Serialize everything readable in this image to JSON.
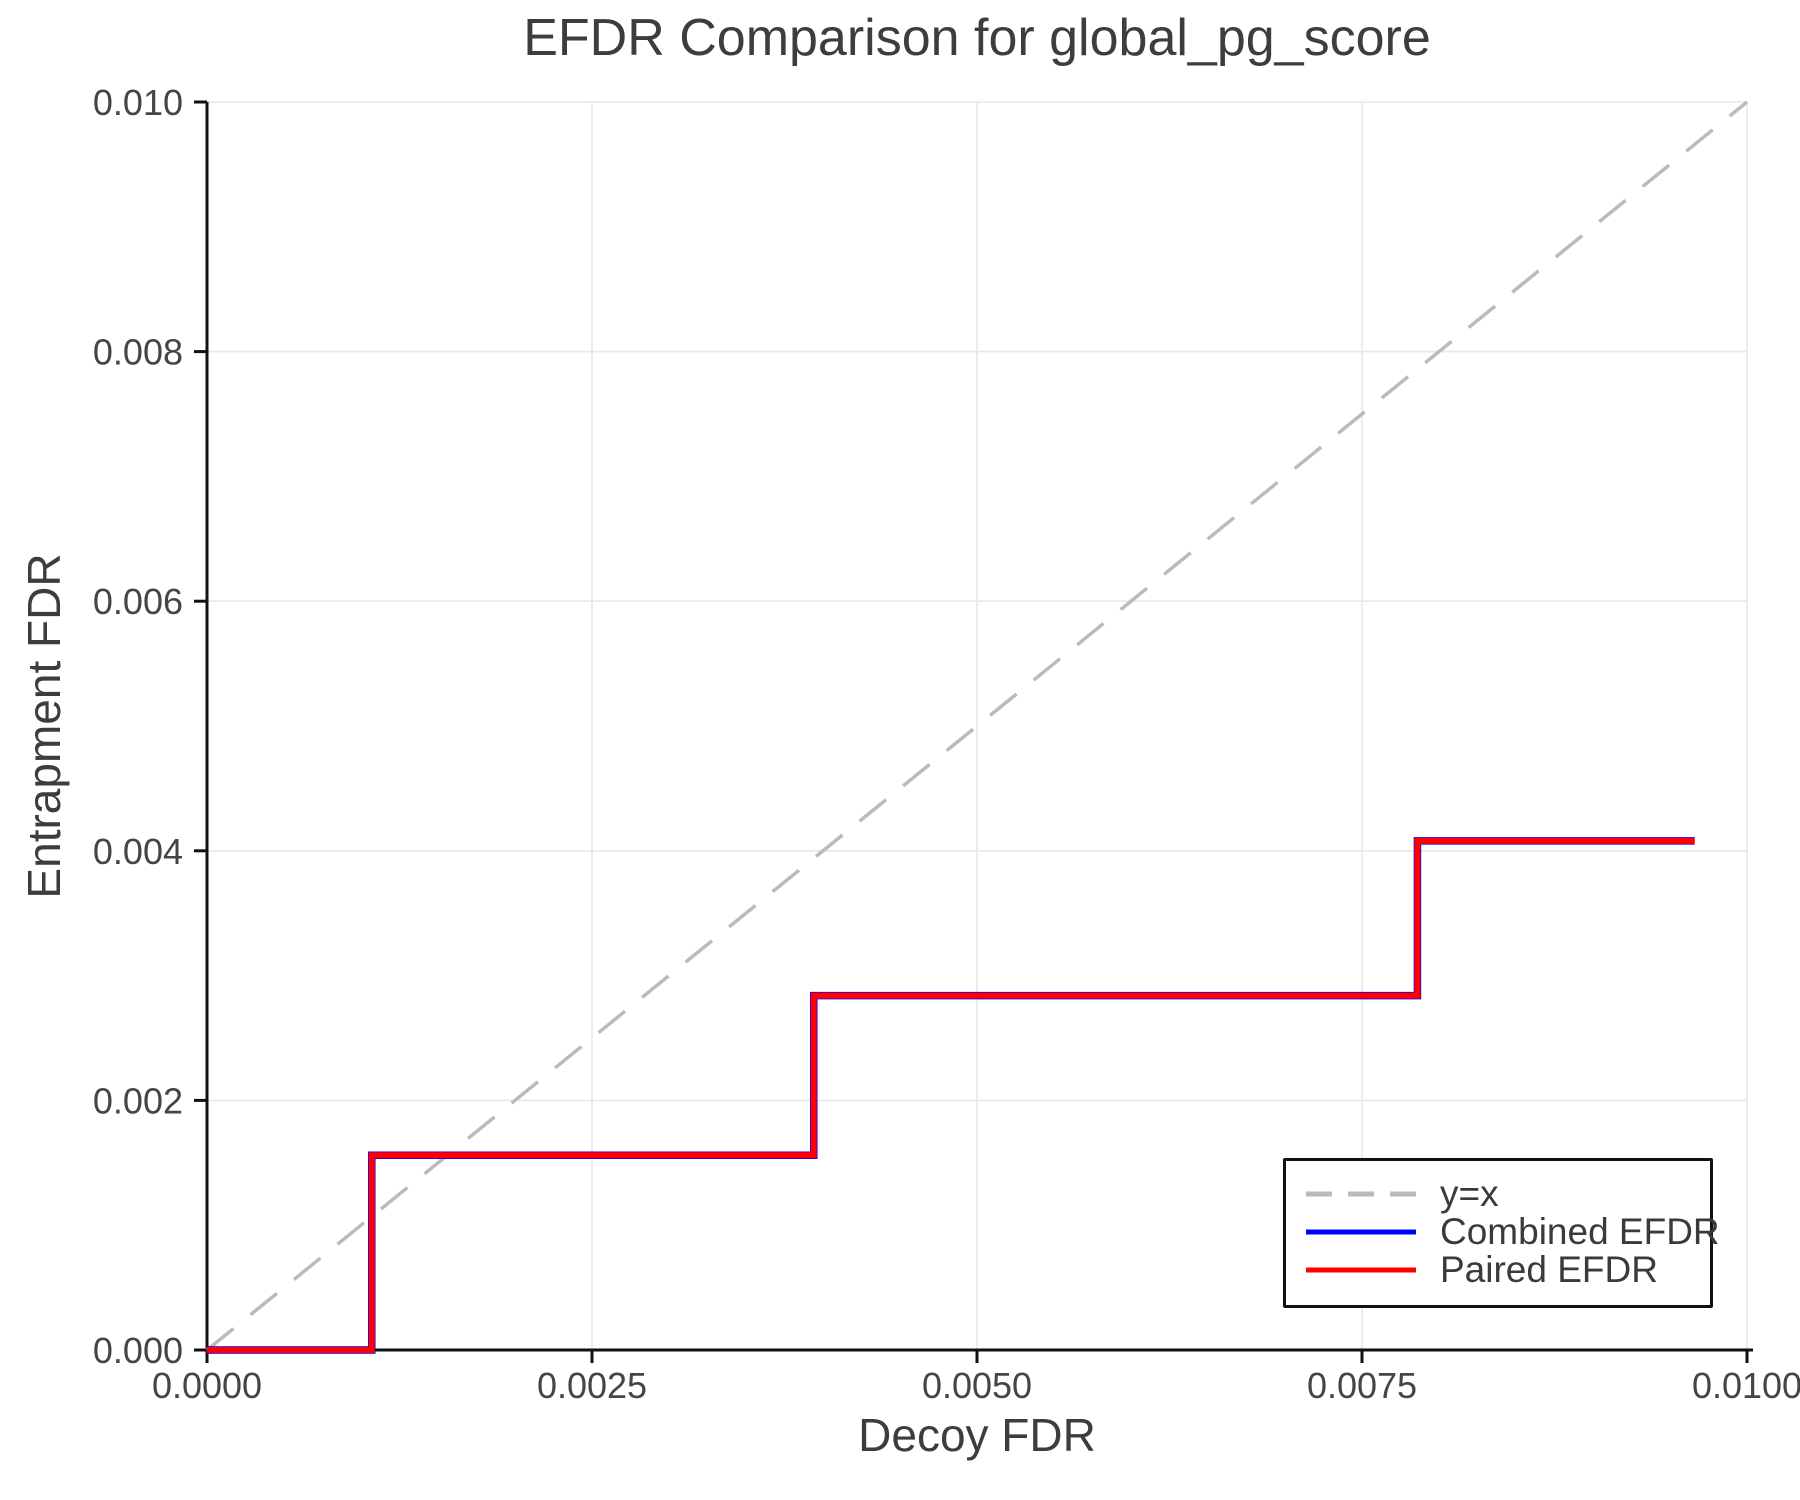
{
  "title": "EFDR Comparison for global_pg_score",
  "axes": {
    "x": {
      "label": "Decoy FDR",
      "range": [
        0,
        0.01
      ],
      "ticks": [
        0,
        0.0025,
        0.005,
        0.0075,
        0.01
      ],
      "tick_labels": [
        "0.0000",
        "0.0025",
        "0.0050",
        "0.0075",
        "0.0100"
      ]
    },
    "y": {
      "label": "Entrapment FDR",
      "range": [
        0,
        0.01
      ],
      "ticks": [
        0,
        0.002,
        0.004,
        0.006,
        0.008,
        0.01
      ],
      "tick_labels": [
        "0.000",
        "0.002",
        "0.004",
        "0.006",
        "0.008",
        "0.010"
      ]
    }
  },
  "legend": {
    "position": "lower right",
    "entries": [
      {
        "label": "y=x",
        "color": "#bbbbbb",
        "dash": true
      },
      {
        "label": "Combined EFDR",
        "color": "#0000ff",
        "dash": false
      },
      {
        "label": "Paired EFDR",
        "color": "#ff0000",
        "dash": false
      }
    ]
  },
  "colors": {
    "grid": "#e8e8e8",
    "axis": "#111111",
    "identity_line": "#bbbbbb",
    "combined": "#0000ff",
    "paired": "#ff0000"
  },
  "chart_data": {
    "type": "line",
    "title": "EFDR Comparison for global_pg_score",
    "xlabel": "Decoy FDR",
    "ylabel": "Entrapment FDR",
    "xlim": [
      0,
      0.01
    ],
    "ylim": [
      0,
      0.01
    ],
    "grid": true,
    "legend_position": "lower right",
    "series": [
      {
        "name": "y=x",
        "color": "#bbbbbb",
        "style": "dashed",
        "step": false,
        "x": [
          0,
          0.01
        ],
        "y": [
          0,
          0.01
        ]
      },
      {
        "name": "Combined EFDR",
        "color": "#0000ff",
        "style": "solid",
        "step": true,
        "x": [
          0,
          0.00107,
          0.00394,
          0.00786,
          0.00966
        ],
        "y": [
          0,
          0.00156,
          0.00284,
          0.00408,
          0.00408
        ]
      },
      {
        "name": "Paired EFDR",
        "color": "#ff0000",
        "style": "solid",
        "step": true,
        "x": [
          0,
          0.00107,
          0.00394,
          0.00786,
          0.00966
        ],
        "y": [
          0,
          0.00156,
          0.00284,
          0.00408,
          0.00408
        ]
      }
    ]
  }
}
